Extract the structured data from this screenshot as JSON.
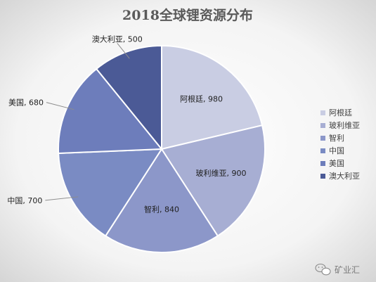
{
  "chart_data": {
    "type": "pie",
    "title": "2018全球锂资源分布",
    "categories": [
      "阿根廷",
      "玻利维亚",
      "智利",
      "中国",
      "美国",
      "澳大利亚"
    ],
    "values": [
      980,
      900,
      840,
      700,
      680,
      500
    ],
    "colors": [
      "#c9cde3",
      "#a7aed3",
      "#8c97c9",
      "#7a8bc3",
      "#6d7dbb",
      "#4b5a96"
    ],
    "legend_position": "right",
    "grid": false
  },
  "watermark": {
    "text": "矿业汇",
    "icon": "wechat-icon"
  }
}
